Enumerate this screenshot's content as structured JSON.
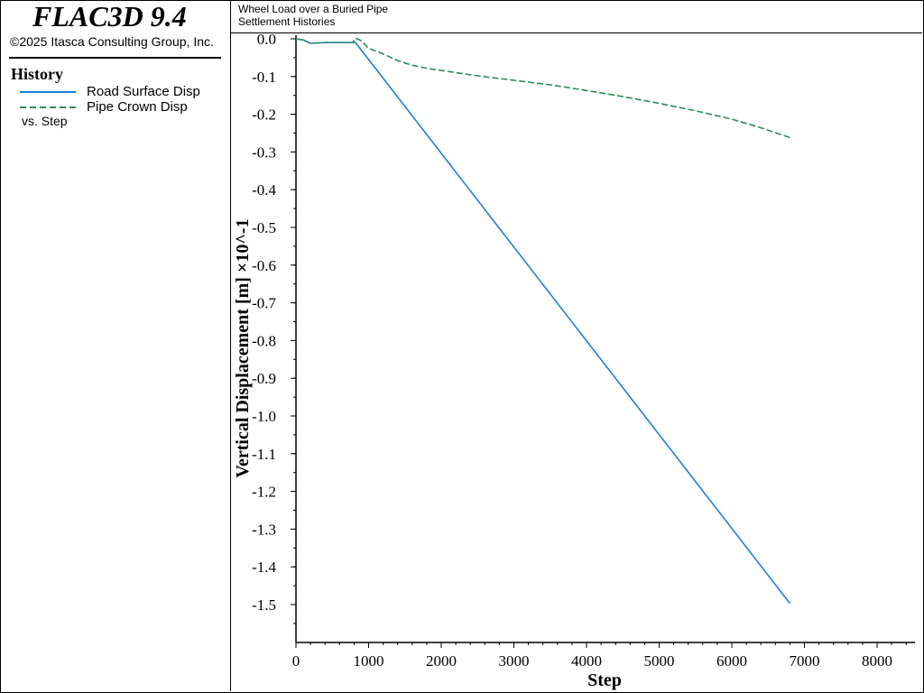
{
  "app": {
    "title": "FLAC3D 9.4",
    "copyright": "©2025 Itasca Consulting Group, Inc."
  },
  "legend": {
    "heading": "History",
    "vs_label": "vs. Step"
  },
  "plot": {
    "title": "Wheel Load over a Buried Pipe",
    "subtitle": "Settlement Histories"
  },
  "chart_data": {
    "type": "line",
    "xlabel": "Step",
    "ylabel": "Vertical Displacement  [m]  ×10^-1",
    "xlim": [
      0,
      8500
    ],
    "ylim": [
      -1.6,
      0.0
    ],
    "x_ticks": [
      "0",
      "1000",
      "2000",
      "3000",
      "4000",
      "5000",
      "6000",
      "7000",
      "8000"
    ],
    "y_ticks": [
      "0.0",
      "-0.1",
      "-0.2",
      "-0.3",
      "-0.4",
      "-0.5",
      "-0.6",
      "-0.7",
      "-0.8",
      "-0.9",
      "-1.0",
      "-1.1",
      "-1.2",
      "-1.3",
      "-1.4",
      "-1.5"
    ],
    "grid": false,
    "legend_position": "left-panel",
    "series": [
      {
        "name": "Road Surface Disp",
        "color": "#1f7fd8",
        "style": "solid",
        "x": [
          0,
          100,
          200,
          400,
          600,
          820,
          6800
        ],
        "y": [
          0.0,
          -0.003,
          -0.012,
          -0.01,
          -0.01,
          -0.01,
          -1.497
        ]
      },
      {
        "name": "Pipe Crown Disp",
        "color": "#2e8b57",
        "style": "dashed",
        "x": [
          0,
          100,
          200,
          400,
          600,
          780,
          820,
          900,
          1000,
          1200,
          1400,
          1600,
          1800,
          2000,
          2500,
          3000,
          3500,
          4000,
          4500,
          5000,
          5500,
          6000,
          6400,
          6800
        ],
        "y": [
          0.0,
          -0.003,
          -0.012,
          -0.01,
          -0.01,
          -0.01,
          0.002,
          -0.005,
          -0.025,
          -0.04,
          -0.058,
          -0.07,
          -0.078,
          -0.084,
          -0.098,
          -0.11,
          -0.122,
          -0.137,
          -0.153,
          -0.171,
          -0.191,
          -0.213,
          -0.236,
          -0.262
        ]
      }
    ]
  }
}
